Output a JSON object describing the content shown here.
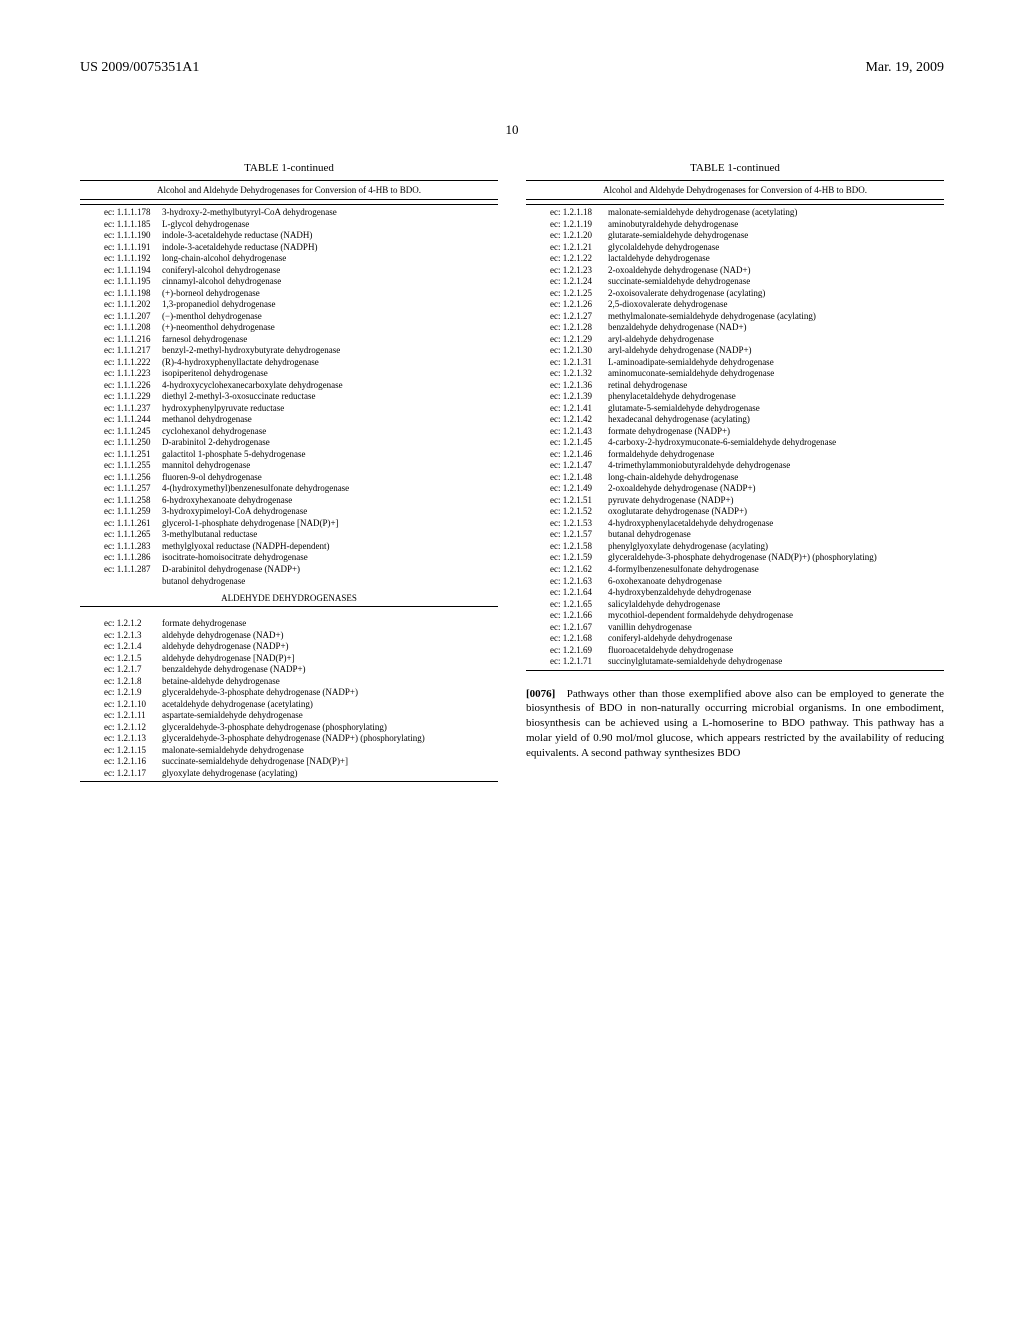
{
  "header": {
    "left": "US 2009/0075351A1",
    "right": "Mar. 19, 2009"
  },
  "page_number": "10",
  "table_title": "TABLE 1-continued",
  "table_caption": "Alcohol and Aldehyde Dehydrogenases for Conversion of 4-HB to BDO.",
  "section_header_aldehyde": "ALDEHYDE DEHYDROGENASES",
  "left_rows_1": [
    {
      "ec": "ec: 1.1.1.178",
      "name": "3-hydroxy-2-methylbutyryl-CoA dehydrogenase"
    },
    {
      "ec": "ec: 1.1.1.185",
      "name": "L-glycol dehydrogenase"
    },
    {
      "ec": "ec: 1.1.1.190",
      "name": "indole-3-acetaldehyde reductase (NADH)"
    },
    {
      "ec": "ec: 1.1.1.191",
      "name": "indole-3-acetaldehyde reductase (NADPH)"
    },
    {
      "ec": "ec: 1.1.1.192",
      "name": "long-chain-alcohol dehydrogenase"
    },
    {
      "ec": "ec: 1.1.1.194",
      "name": "coniferyl-alcohol dehydrogenase"
    },
    {
      "ec": "ec: 1.1.1.195",
      "name": "cinnamyl-alcohol dehydrogenase"
    },
    {
      "ec": "ec: 1.1.1.198",
      "name": "(+)-borneol dehydrogenase"
    },
    {
      "ec": "ec: 1.1.1.202",
      "name": "1,3-propanediol dehydrogenase"
    },
    {
      "ec": "ec: 1.1.1.207",
      "name": "(−)-menthol dehydrogenase"
    },
    {
      "ec": "ec: 1.1.1.208",
      "name": "(+)-neomenthol dehydrogenase"
    },
    {
      "ec": "ec: 1.1.1.216",
      "name": "farnesol dehydrogenase"
    },
    {
      "ec": "ec: 1.1.1.217",
      "name": "benzyl-2-methyl-hydroxybutyrate dehydrogenase"
    },
    {
      "ec": "ec: 1.1.1.222",
      "name": "(R)-4-hydroxyphenyllactate dehydrogenase"
    },
    {
      "ec": "ec: 1.1.1.223",
      "name": "isopiperitenol dehydrogenase"
    },
    {
      "ec": "ec: 1.1.1.226",
      "name": "4-hydroxycyclohexanecarboxylate dehydrogenase"
    },
    {
      "ec": "ec: 1.1.1.229",
      "name": "diethyl 2-methyl-3-oxosuccinate reductase"
    },
    {
      "ec": "ec: 1.1.1.237",
      "name": "hydroxyphenylpyruvate reductase"
    },
    {
      "ec": "ec: 1.1.1.244",
      "name": "methanol dehydrogenase"
    },
    {
      "ec": "ec: 1.1.1.245",
      "name": "cyclohexanol dehydrogenase"
    },
    {
      "ec": "ec: 1.1.1.250",
      "name": "D-arabinitol 2-dehydrogenase"
    },
    {
      "ec": "ec: 1.1.1.251",
      "name": "galactitol 1-phosphate 5-dehydrogenase"
    },
    {
      "ec": "ec: 1.1.1.255",
      "name": "mannitol dehydrogenase"
    },
    {
      "ec": "ec: 1.1.1.256",
      "name": "fluoren-9-ol dehydrogenase"
    },
    {
      "ec": "ec: 1.1.1.257",
      "name": "4-(hydroxymethyl)benzenesulfonate dehydrogenase"
    },
    {
      "ec": "ec: 1.1.1.258",
      "name": "6-hydroxyhexanoate dehydrogenase"
    },
    {
      "ec": "ec: 1.1.1.259",
      "name": "3-hydroxypimeloyl-CoA dehydrogenase"
    },
    {
      "ec": "ec: 1.1.1.261",
      "name": "glycerol-1-phosphate dehydrogenase [NAD(P)+]"
    },
    {
      "ec": "ec: 1.1.1.265",
      "name": "3-methylbutanal reductase"
    },
    {
      "ec": "ec: 1.1.1.283",
      "name": "methylglyoxal reductase (NADPH-dependent)"
    },
    {
      "ec": "ec: 1.1.1.286",
      "name": "isocitrate-homoisocitrate dehydrogenase"
    },
    {
      "ec": "ec: 1.1.1.287",
      "name": "D-arabinitol dehydrogenase (NADP+)"
    },
    {
      "ec": "",
      "name": "butanol dehydrogenase"
    }
  ],
  "left_rows_2": [
    {
      "ec": "ec: 1.2.1.2",
      "name": "formate dehydrogenase"
    },
    {
      "ec": "ec: 1.2.1.3",
      "name": "aldehyde dehydrogenase (NAD+)"
    },
    {
      "ec": "ec: 1.2.1.4",
      "name": "aldehyde dehydrogenase (NADP+)"
    },
    {
      "ec": "ec: 1.2.1.5",
      "name": "aldehyde dehydrogenase [NAD(P)+]"
    },
    {
      "ec": "ec: 1.2.1.7",
      "name": "benzaldehyde dehydrogenase (NADP+)"
    },
    {
      "ec": "ec: 1.2.1.8",
      "name": "betaine-aldehyde dehydrogenase"
    },
    {
      "ec": "ec: 1.2.1.9",
      "name": "glyceraldehyde-3-phosphate dehydrogenase (NADP+)"
    },
    {
      "ec": "ec: 1.2.1.10",
      "name": "acetaldehyde dehydrogenase (acetylating)"
    },
    {
      "ec": "ec: 1.2.1.11",
      "name": "aspartate-semialdehyde dehydrogenase"
    },
    {
      "ec": "ec: 1.2.1.12",
      "name": "glyceraldehyde-3-phosphate dehydrogenase (phosphorylating)"
    },
    {
      "ec": "ec: 1.2.1.13",
      "name": "glyceraldehyde-3-phosphate dehydrogenase (NADP+) (phosphorylating)"
    },
    {
      "ec": "ec: 1.2.1.15",
      "name": "malonate-semialdehyde dehydrogenase"
    },
    {
      "ec": "ec: 1.2.1.16",
      "name": "succinate-semialdehyde dehydrogenase [NAD(P)+]"
    },
    {
      "ec": "ec: 1.2.1.17",
      "name": "glyoxylate dehydrogenase (acylating)"
    }
  ],
  "right_rows": [
    {
      "ec": "ec: 1.2.1.18",
      "name": "malonate-semialdehyde dehydrogenase (acetylating)"
    },
    {
      "ec": "ec: 1.2.1.19",
      "name": "aminobutyraldehyde dehydrogenase"
    },
    {
      "ec": "ec: 1.2.1.20",
      "name": "glutarate-semialdehyde dehydrogenase"
    },
    {
      "ec": "ec: 1.2.1.21",
      "name": "glycolaldehyde dehydrogenase"
    },
    {
      "ec": "ec: 1.2.1.22",
      "name": "lactaldehyde dehydrogenase"
    },
    {
      "ec": "ec: 1.2.1.23",
      "name": "2-oxoaldehyde dehydrogenase (NAD+)"
    },
    {
      "ec": "ec: 1.2.1.24",
      "name": "succinate-semialdehyde dehydrogenase"
    },
    {
      "ec": "ec: 1.2.1.25",
      "name": "2-oxoisovalerate dehydrogenase (acylating)"
    },
    {
      "ec": "ec: 1.2.1.26",
      "name": "2,5-dioxovalerate dehydrogenase"
    },
    {
      "ec": "ec: 1.2.1.27",
      "name": "methylmalonate-semialdehyde dehydrogenase (acylating)"
    },
    {
      "ec": "ec: 1.2.1.28",
      "name": "benzaldehyde dehydrogenase (NAD+)"
    },
    {
      "ec": "ec: 1.2.1.29",
      "name": "aryl-aldehyde dehydrogenase"
    },
    {
      "ec": "ec: 1.2.1.30",
      "name": "aryl-aldehyde dehydrogenase (NADP+)"
    },
    {
      "ec": "ec: 1.2.1.31",
      "name": "L-aminoadipate-semialdehyde dehydrogenase"
    },
    {
      "ec": "ec: 1.2.1.32",
      "name": "aminomuconate-semialdehyde dehydrogenase"
    },
    {
      "ec": "ec: 1.2.1.36",
      "name": "retinal dehydrogenase"
    },
    {
      "ec": "ec: 1.2.1.39",
      "name": "phenylacetaldehyde dehydrogenase"
    },
    {
      "ec": "ec: 1.2.1.41",
      "name": "glutamate-5-semialdehyde dehydrogenase"
    },
    {
      "ec": "ec: 1.2.1.42",
      "name": "hexadecanal dehydrogenase (acylating)"
    },
    {
      "ec": "ec: 1.2.1.43",
      "name": "formate dehydrogenase (NADP+)"
    },
    {
      "ec": "ec: 1.2.1.45",
      "name": "4-carboxy-2-hydroxymuconate-6-semialdehyde dehydrogenase"
    },
    {
      "ec": "ec: 1.2.1.46",
      "name": "formaldehyde dehydrogenase"
    },
    {
      "ec": "ec: 1.2.1.47",
      "name": "4-trimethylammoniobutyraldehyde dehydrogenase"
    },
    {
      "ec": "ec: 1.2.1.48",
      "name": "long-chain-aldehyde dehydrogenase"
    },
    {
      "ec": "ec: 1.2.1.49",
      "name": "2-oxoaldehyde dehydrogenase (NADP+)"
    },
    {
      "ec": "ec: 1.2.1.51",
      "name": "pyruvate dehydrogenase (NADP+)"
    },
    {
      "ec": "ec: 1.2.1.52",
      "name": "oxoglutarate dehydrogenase (NADP+)"
    },
    {
      "ec": "ec: 1.2.1.53",
      "name": "4-hydroxyphenylacetaldehyde dehydrogenase"
    },
    {
      "ec": "ec: 1.2.1.57",
      "name": "butanal dehydrogenase"
    },
    {
      "ec": "ec: 1.2.1.58",
      "name": "phenylglyoxylate dehydrogenase (acylating)"
    },
    {
      "ec": "ec: 1.2.1.59",
      "name": "glyceraldehyde-3-phosphate dehydrogenase (NAD(P)+) (phosphorylating)"
    },
    {
      "ec": "ec: 1.2.1.62",
      "name": "4-formylbenzenesulfonate dehydrogenase"
    },
    {
      "ec": "ec: 1.2.1.63",
      "name": "6-oxohexanoate dehydrogenase"
    },
    {
      "ec": "ec: 1.2.1.64",
      "name": "4-hydroxybenzaldehyde dehydrogenase"
    },
    {
      "ec": "ec: 1.2.1.65",
      "name": "salicylaldehyde dehydrogenase"
    },
    {
      "ec": "ec: 1.2.1.66",
      "name": "mycothiol-dependent formaldehyde dehydrogenase"
    },
    {
      "ec": "ec: 1.2.1.67",
      "name": "vanillin dehydrogenase"
    },
    {
      "ec": "ec: 1.2.1.68",
      "name": "coniferyl-aldehyde dehydrogenase"
    },
    {
      "ec": "ec: 1.2.1.69",
      "name": "fluoroacetaldehyde dehydrogenase"
    },
    {
      "ec": "ec: 1.2.1.71",
      "name": "succinylglutamate-semialdehyde dehydrogenase"
    }
  ],
  "paragraph": {
    "num": "[0076]",
    "text": "Pathways other than those exemplified above also can be employed to generate the biosynthesis of BDO in non-naturally occurring microbial organisms. In one embodiment, biosynthesis can be achieved using a L-homoserine to BDO pathway. This pathway has a molar yield of 0.90 mol/mol glucose, which appears restricted by the availability of reducing equivalents. A second pathway synthesizes BDO"
  }
}
